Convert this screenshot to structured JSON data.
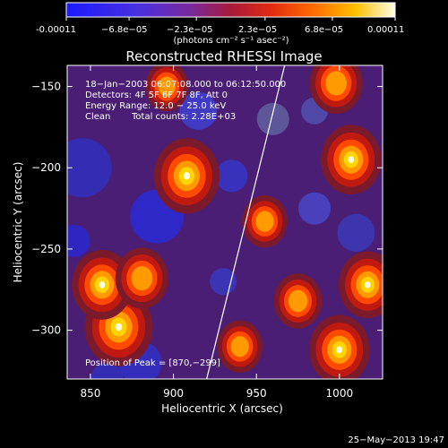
{
  "colorbar": {
    "tick_labels": [
      "-0.00011",
      "−6.8e−05",
      "−2.3e−05",
      "2.3e−05",
      "6.8e−05",
      "0.00011"
    ],
    "tick_values": [
      -0.00011,
      -6.8e-05,
      -2.3e-05,
      2.3e-05,
      6.8e-05,
      0.00011
    ],
    "range": [
      -0.00011,
      0.00011
    ],
    "units_label": "(photons cm⁻² s⁻¹ asec⁻²)",
    "colors": [
      "#2020ff",
      "#5a2ad0",
      "#8a2a8a",
      "#c0202a",
      "#ff5a00",
      "#ffb400",
      "#ffffe8"
    ]
  },
  "annotations": {
    "line1": "18−Jan−2003 06:07:08.000 to 06:12:50.000",
    "line2": "Detectors: 4F 5F 6F 7F 8F, Att 0",
    "line3": "Energy Range: 12.0 − 25.0 keV",
    "line4_label": "Clean",
    "line4_value": "Total counts: 2.28E+03",
    "peak": "Position of Peak = [870,−299]"
  },
  "timestamp": "25−May−2013 19:47",
  "chart_data": {
    "type": "heatmap",
    "title": "Reconstructed RHESSI Image",
    "xlabel": "Heliocentric X (arcsec)",
    "ylabel": "Heliocentric Y (arcsec)",
    "xlim": [
      836,
      1026
    ],
    "ylim": [
      -330,
      -137
    ],
    "xticks": [
      850,
      900,
      950,
      1000
    ],
    "yticks": [
      -150,
      -200,
      -250,
      -300
    ],
    "limb_line": [
      [
        920,
        -330
      ],
      [
        967,
        -137
      ]
    ],
    "peak": [
      870,
      -299
    ],
    "sources": [
      {
        "x": 867,
        "y": -298,
        "peak": 1.0
      },
      {
        "x": 857,
        "y": -272,
        "peak": 0.85
      },
      {
        "x": 881,
        "y": -268,
        "peak": 0.7
      },
      {
        "x": 908,
        "y": -205,
        "peak": 0.95
      },
      {
        "x": 955,
        "y": -233,
        "peak": 0.55
      },
      {
        "x": 1000,
        "y": -312,
        "peak": 0.85
      },
      {
        "x": 975,
        "y": -282,
        "peak": 0.6
      },
      {
        "x": 1017,
        "y": -272,
        "peak": 0.8
      },
      {
        "x": 1007,
        "y": -195,
        "peak": 0.85
      },
      {
        "x": 998,
        "y": -148,
        "peak": 0.7
      },
      {
        "x": 896,
        "y": -150,
        "peak": 0.5
      },
      {
        "x": 940,
        "y": -310,
        "peak": 0.55
      }
    ],
    "grid": false
  }
}
